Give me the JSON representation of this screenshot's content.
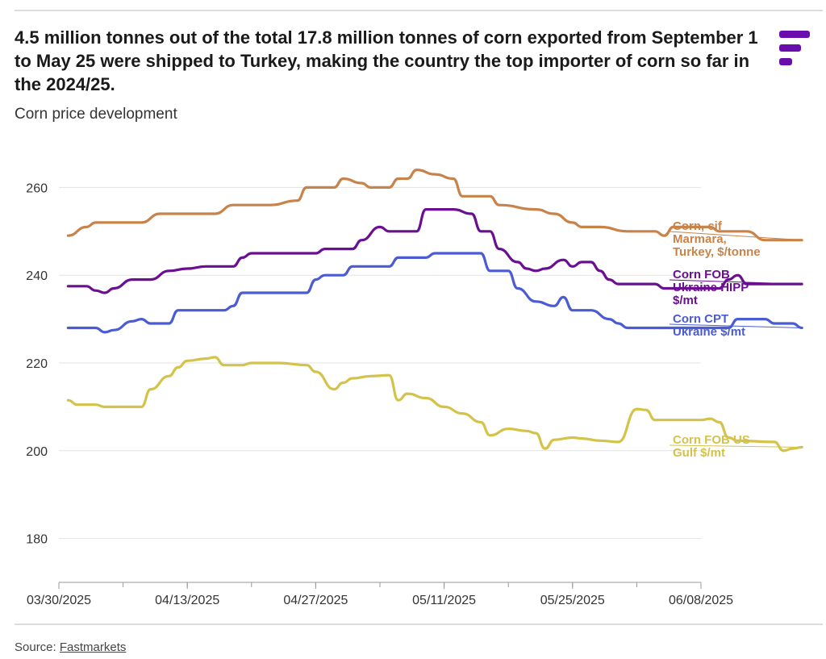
{
  "header": {
    "title": "4.5 million tonnes out of the total 17.8 million tonnes of corn exported from September 1 to May 25 were shipped to Turkey, making the country the top importer of corn so far in the 2024/25.",
    "subtitle": "Corn price development"
  },
  "footer": {
    "source_prefix": "Source: ",
    "source_name": "Fastmarkets"
  },
  "colors": {
    "brand": "#6a0dad",
    "grid": "#e3e3e3",
    "axis": "#999999"
  },
  "chart_data": {
    "type": "line",
    "title": "Corn price development",
    "xlabel": "",
    "ylabel": "",
    "x_range": [
      "03/30/2025",
      "06/08/2025"
    ],
    "ylim": [
      170,
      270
    ],
    "yticks": [
      180,
      200,
      220,
      240,
      260
    ],
    "xticks": [
      "03/30/2025",
      "04/13/2025",
      "04/27/2025",
      "05/11/2025",
      "05/25/2025",
      "06/08/2025"
    ],
    "grid": true,
    "legend": "inline labels at line ends (right)",
    "series": [
      {
        "name": "Corn, cif Marmara, Turkey, $/tonne",
        "label_lines": [
          "Corn, cif",
          "Marmara,",
          "Turkey, $/tonne"
        ],
        "color": "#c8834a",
        "points": [
          [
            "03/31/2025",
            249
          ],
          [
            "04/02/2025",
            251
          ],
          [
            "04/03/2025",
            252
          ],
          [
            "04/08/2025",
            252
          ],
          [
            "04/10/2025",
            254
          ],
          [
            "04/16/2025",
            254
          ],
          [
            "04/18/2025",
            256
          ],
          [
            "04/22/2025",
            256
          ],
          [
            "04/25/2025",
            257
          ],
          [
            "04/26/2025",
            260
          ],
          [
            "04/29/2025",
            260
          ],
          [
            "04/30/2025",
            262
          ],
          [
            "05/02/2025",
            261
          ],
          [
            "05/03/2025",
            260
          ],
          [
            "05/05/2025",
            260
          ],
          [
            "05/06/2025",
            262
          ],
          [
            "05/07/2025",
            262
          ],
          [
            "05/08/2025",
            264
          ],
          [
            "05/10/2025",
            263
          ],
          [
            "05/12/2025",
            262
          ],
          [
            "05/13/2025",
            258
          ],
          [
            "05/16/2025",
            258
          ],
          [
            "05/17/2025",
            256
          ],
          [
            "05/21/2025",
            255
          ],
          [
            "05/23/2025",
            254
          ],
          [
            "05/25/2025",
            252
          ],
          [
            "05/26/2025",
            251
          ],
          [
            "05/28/2025",
            251
          ],
          [
            "05/31/2025",
            250
          ],
          [
            "06/03/2025",
            250
          ],
          [
            "06/04/2025",
            249
          ],
          [
            "06/05/2025",
            251
          ],
          [
            "06/09/2025",
            251
          ],
          [
            "06/10/2025",
            250
          ],
          [
            "06/13/2025",
            250
          ],
          [
            "06/15/2025",
            248
          ],
          [
            "06/19/2025",
            248
          ]
        ]
      },
      {
        "name": "Corn FOB Ukraine HIPP $/mt",
        "label_lines": [
          "Corn FOB",
          "Ukraine HIPP",
          "$/mt"
        ],
        "color": "#6a0f91",
        "points": [
          [
            "03/31/2025",
            237.5
          ],
          [
            "04/02/2025",
            237.5
          ],
          [
            "04/03/2025",
            236.5
          ],
          [
            "04/04/2025",
            236
          ],
          [
            "04/05/2025",
            237
          ],
          [
            "04/07/2025",
            239
          ],
          [
            "04/09/2025",
            239
          ],
          [
            "04/11/2025",
            241
          ],
          [
            "04/13/2025",
            241.5
          ],
          [
            "04/15/2025",
            242
          ],
          [
            "04/18/2025",
            242
          ],
          [
            "04/19/2025",
            244
          ],
          [
            "04/20/2025",
            245
          ],
          [
            "04/27/2025",
            245
          ],
          [
            "04/28/2025",
            246
          ],
          [
            "05/01/2025",
            246
          ],
          [
            "05/02/2025",
            248
          ],
          [
            "05/04/2025",
            251
          ],
          [
            "05/05/2025",
            250
          ],
          [
            "05/08/2025",
            250
          ],
          [
            "05/09/2025",
            255
          ],
          [
            "05/12/2025",
            255
          ],
          [
            "05/14/2025",
            254
          ],
          [
            "05/15/2025",
            250
          ],
          [
            "05/16/2025",
            250
          ],
          [
            "05/17/2025",
            246
          ],
          [
            "05/19/2025",
            243
          ],
          [
            "05/20/2025",
            241.5
          ],
          [
            "05/21/2025",
            241
          ],
          [
            "05/22/2025",
            241.5
          ],
          [
            "05/24/2025",
            243.5
          ],
          [
            "05/25/2025",
            242
          ],
          [
            "05/26/2025",
            243
          ],
          [
            "05/27/2025",
            243
          ],
          [
            "05/28/2025",
            241
          ],
          [
            "05/29/2025",
            239
          ],
          [
            "05/30/2025",
            238
          ],
          [
            "06/03/2025",
            238
          ],
          [
            "06/04/2025",
            237
          ],
          [
            "06/10/2025",
            237
          ],
          [
            "06/11/2025",
            239
          ],
          [
            "06/12/2025",
            240
          ],
          [
            "06/13/2025",
            238
          ],
          [
            "06/19/2025",
            238
          ]
        ]
      },
      {
        "name": "Corn CPT Ukraine $/mt",
        "label_lines": [
          "Corn CPT",
          "Ukraine $/mt"
        ],
        "color": "#4a5bd4",
        "points": [
          [
            "03/31/2025",
            228
          ],
          [
            "04/03/2025",
            228
          ],
          [
            "04/04/2025",
            227
          ],
          [
            "04/05/2025",
            227.5
          ],
          [
            "04/07/2025",
            229.5
          ],
          [
            "04/08/2025",
            230
          ],
          [
            "04/09/2025",
            229
          ],
          [
            "04/11/2025",
            229
          ],
          [
            "04/12/2025",
            232
          ],
          [
            "04/17/2025",
            232
          ],
          [
            "04/18/2025",
            233
          ],
          [
            "04/19/2025",
            236
          ],
          [
            "04/26/2025",
            236
          ],
          [
            "04/27/2025",
            239
          ],
          [
            "04/28/2025",
            240
          ],
          [
            "04/30/2025",
            240
          ],
          [
            "05/01/2025",
            242
          ],
          [
            "05/05/2025",
            242
          ],
          [
            "05/06/2025",
            244
          ],
          [
            "05/09/2025",
            244
          ],
          [
            "05/10/2025",
            245
          ],
          [
            "05/15/2025",
            245
          ],
          [
            "05/16/2025",
            241
          ],
          [
            "05/18/2025",
            241
          ],
          [
            "05/19/2025",
            237
          ],
          [
            "05/21/2025",
            234
          ],
          [
            "05/23/2025",
            233
          ],
          [
            "05/24/2025",
            235
          ],
          [
            "05/25/2025",
            232
          ],
          [
            "05/27/2025",
            232
          ],
          [
            "05/29/2025",
            230
          ],
          [
            "05/30/2025",
            229
          ],
          [
            "05/31/2025",
            228
          ],
          [
            "06/11/2025",
            228
          ],
          [
            "06/12/2025",
            230
          ],
          [
            "06/15/2025",
            230
          ],
          [
            "06/16/2025",
            229
          ],
          [
            "06/18/2025",
            229
          ],
          [
            "06/19/2025",
            228
          ]
        ]
      },
      {
        "name": "Corn FOB US Gulf $/mt",
        "label_lines": [
          "Corn FOB US",
          "Gulf $/mt"
        ],
        "color": "#d4c34a",
        "points": [
          [
            "03/31/2025",
            211.5
          ],
          [
            "04/01/2025",
            210.5
          ],
          [
            "04/03/2025",
            210.5
          ],
          [
            "04/04/2025",
            210
          ],
          [
            "04/07/2025",
            210
          ],
          [
            "04/08/2025",
            210
          ],
          [
            "04/09/2025",
            214
          ],
          [
            "04/11/2025",
            217
          ],
          [
            "04/12/2025",
            219
          ],
          [
            "04/13/2025",
            220.5
          ],
          [
            "04/15/2025",
            221
          ],
          [
            "04/16/2025",
            221.3
          ],
          [
            "04/17/2025",
            219.5
          ],
          [
            "04/19/2025",
            219.5
          ],
          [
            "04/20/2025",
            220
          ],
          [
            "04/23/2025",
            220
          ],
          [
            "04/26/2025",
            219.5
          ],
          [
            "04/27/2025",
            218
          ],
          [
            "04/29/2025",
            214
          ],
          [
            "04/30/2025",
            215.5
          ],
          [
            "05/01/2025",
            216.5
          ],
          [
            "05/03/2025",
            217
          ],
          [
            "05/05/2025",
            217.2
          ],
          [
            "05/06/2025",
            211.5
          ],
          [
            "05/07/2025",
            213
          ],
          [
            "05/09/2025",
            212
          ],
          [
            "05/11/2025",
            210
          ],
          [
            "05/13/2025",
            208.5
          ],
          [
            "05/15/2025",
            206.5
          ],
          [
            "05/16/2025",
            203.5
          ],
          [
            "05/18/2025",
            205
          ],
          [
            "05/20/2025",
            204.5
          ],
          [
            "05/21/2025",
            204
          ],
          [
            "05/22/2025",
            200.5
          ],
          [
            "05/23/2025",
            202.5
          ],
          [
            "05/25/2025",
            203
          ],
          [
            "05/26/2025",
            202.8
          ],
          [
            "05/28/2025",
            202.3
          ],
          [
            "05/30/2025",
            202
          ],
          [
            "06/01/2025",
            209.5
          ],
          [
            "06/02/2025",
            209.3
          ],
          [
            "06/03/2025",
            207
          ],
          [
            "06/08/2025",
            207
          ],
          [
            "06/09/2025",
            207.3
          ],
          [
            "06/10/2025",
            206.5
          ],
          [
            "06/11/2025",
            203
          ],
          [
            "06/12/2025",
            202.3
          ],
          [
            "06/16/2025",
            202
          ],
          [
            "06/17/2025",
            200
          ],
          [
            "06/18/2025",
            200.5
          ],
          [
            "06/19/2025",
            200.8
          ]
        ]
      }
    ]
  }
}
